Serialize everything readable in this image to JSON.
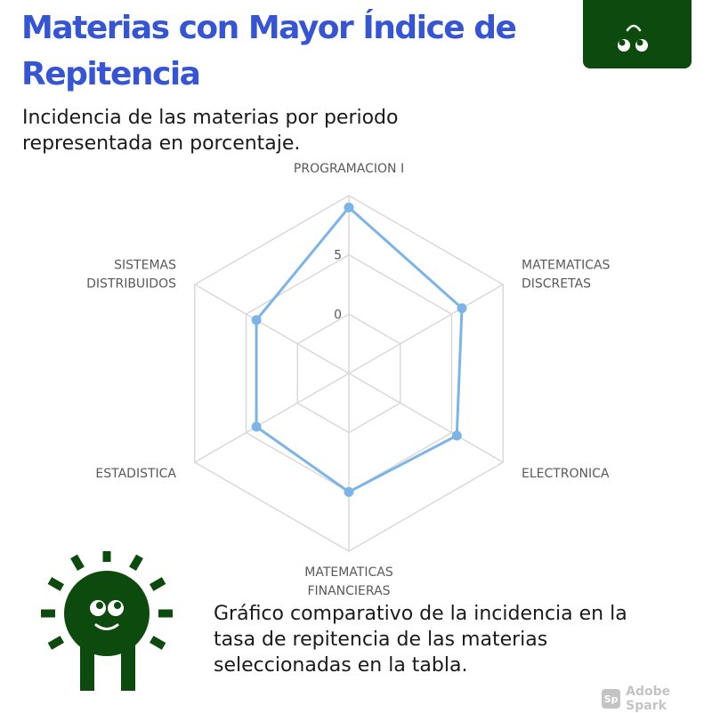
{
  "header": {
    "title": "Materias con Mayor Índice de Repitencia",
    "subtitle": "Incidencia de las materias por periodo representada en porcentaje."
  },
  "chart_data": {
    "type": "radar",
    "categories": [
      "PROGRAMACION I",
      "MATEMATICAS DISCRETAS",
      "ELECTRONICA",
      "MATEMATICAS FINANCIERAS",
      "ESTADISTICA",
      "SISTEMAS DISTRIBUIDOS"
    ],
    "category_lines": [
      [
        "PROGRAMACION I"
      ],
      [
        "MATEMATICAS",
        "DISCRETAS"
      ],
      [
        "ELECTRONICA"
      ],
      [
        "MATEMATICAS",
        "FINANCIERAS"
      ],
      [
        "ESTADISTICA"
      ],
      [
        "SISTEMAS",
        "DISTRIBUIDOS"
      ]
    ],
    "series": [
      {
        "values": [
          9,
          6,
          5.5,
          5,
          4,
          4
        ],
        "color": "#7cb4e8"
      }
    ],
    "axis_ticks": [
      {
        "value": 0,
        "label": "0"
      },
      {
        "value": 5,
        "label": "5"
      }
    ],
    "range": [
      -5,
      10
    ],
    "grid": true,
    "grid_color": "#d9d9d9"
  },
  "caption": "Gráfico comparativo de la incidencia en la tasa de repitencia de las materias seleccionadas en la tabla.",
  "branding": {
    "badge_color": "#0d4a0d",
    "mascot_color": "#0d4a0d",
    "watermark_logo": "Sp",
    "watermark_text": "Adobe Spark"
  }
}
